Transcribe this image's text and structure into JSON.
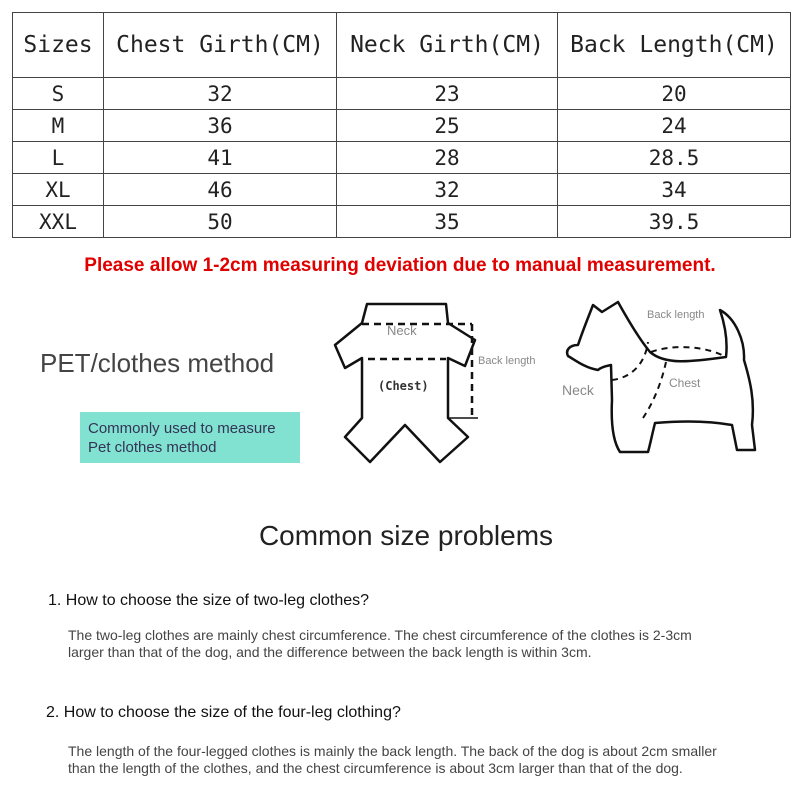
{
  "size_table": {
    "headers": [
      "Sizes",
      "Chest Girth(CM)",
      "Neck Girth(CM)",
      "Back Length(CM)"
    ],
    "rows": [
      [
        "S",
        "32",
        "23",
        "20"
      ],
      [
        "M",
        "36",
        "25",
        "24"
      ],
      [
        "L",
        "41",
        "28",
        "28.5"
      ],
      [
        "XL",
        "46",
        "32",
        "34"
      ],
      [
        "XXL",
        "50",
        "35",
        "39.5"
      ]
    ]
  },
  "deviation_note": "Please allow 1-2cm measuring deviation due to manual measurement.",
  "method": {
    "title": "PET/clothes method",
    "badge_line1": "Commonly used to measure",
    "badge_line2": "Pet clothes method",
    "badge_color": "#82e2d2"
  },
  "clothes_diagram": {
    "neck": "Neck",
    "chest": "(Chest)",
    "back_length": "Back length"
  },
  "dog_diagram": {
    "back_length": "Back length",
    "neck": "Neck",
    "chest": "Chest"
  },
  "faq": {
    "title": "Common size problems",
    "items": [
      {
        "question": "1. How to choose the size of two-leg clothes?",
        "answer": "The two-leg clothes are mainly chest circumference. The chest circumference of the clothes is 2-3cm larger than that of the dog, and the difference between the back length is within 3cm."
      },
      {
        "question": "2. How to choose the size of the four-leg clothing?",
        "answer": "The length of the four-legged clothes is mainly the back length. The back of the dog is about 2cm smaller than the length of the clothes, and the chest circumference is about 3cm larger than that of the dog."
      }
    ]
  },
  "note_color": "#e00000"
}
